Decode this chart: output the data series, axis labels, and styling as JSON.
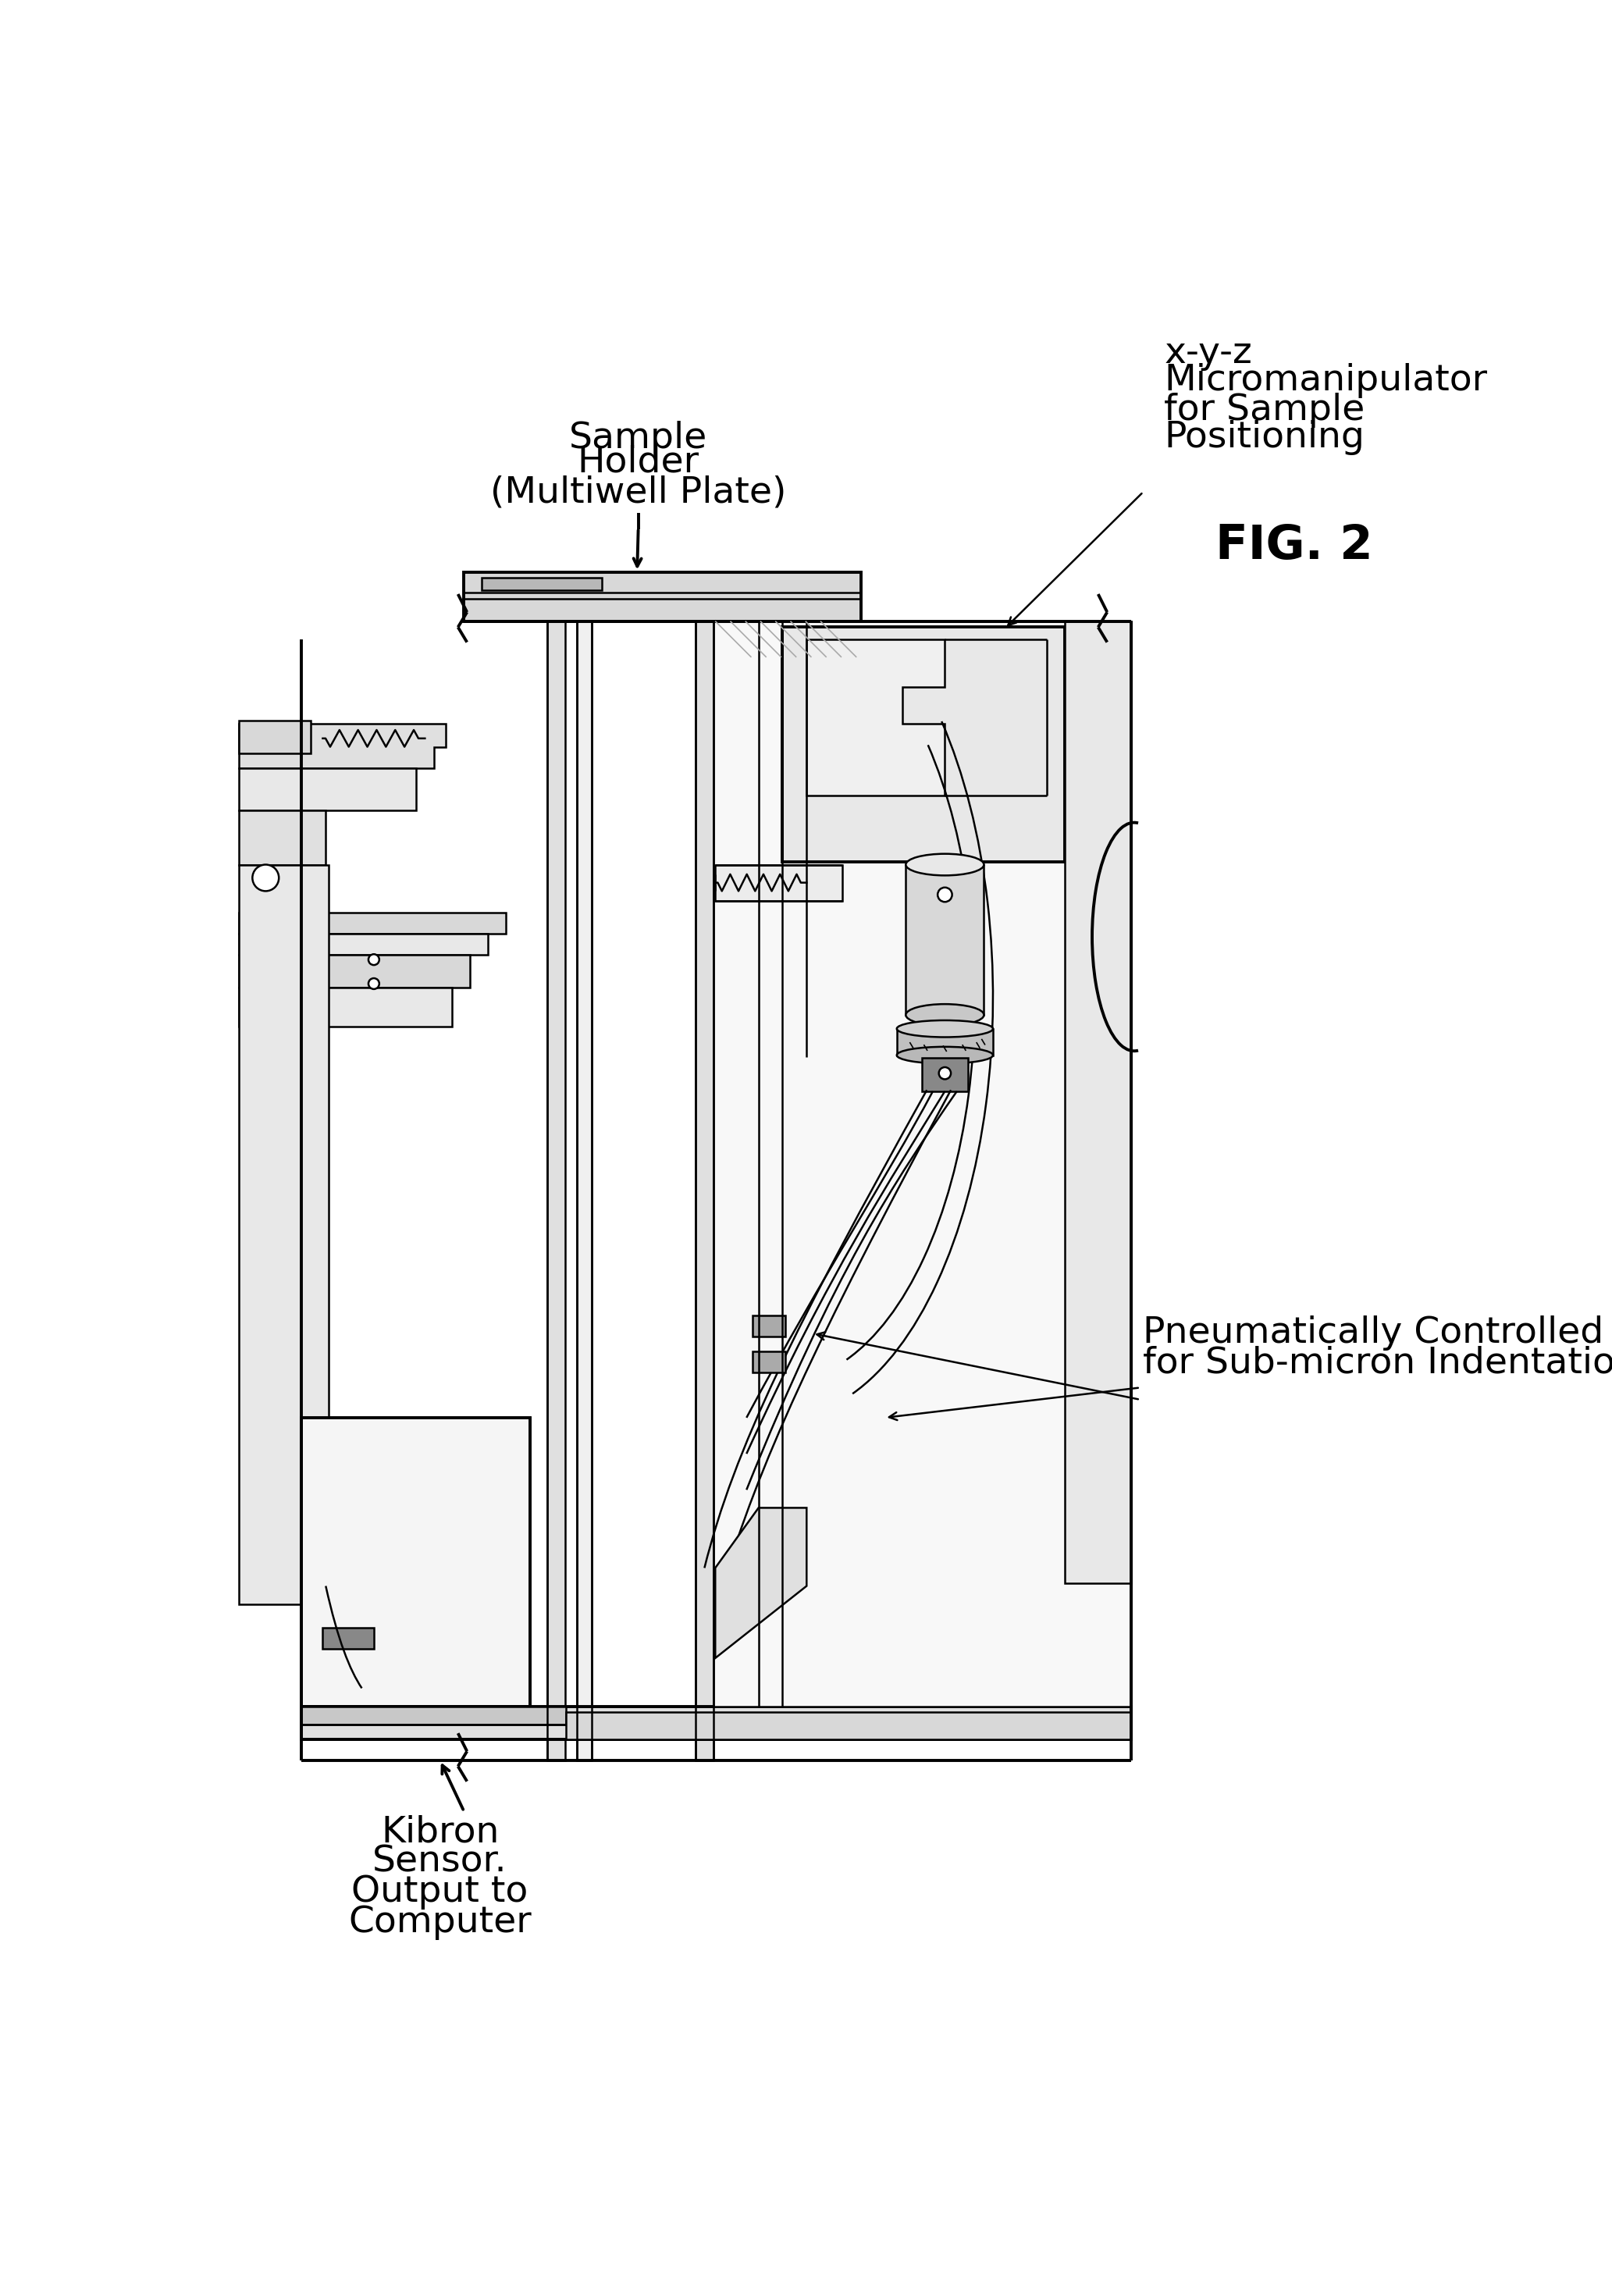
{
  "background_color": "#ffffff",
  "line_color": "#000000",
  "label_sample_holder_line1": "Sample",
  "label_sample_holder_line2": "Holder",
  "label_sample_holder_line3": "(Multiwell Plate)",
  "label_xyz_line1": "x-y-z",
  "label_xyz_line2": "Micromanipulator",
  "label_xyz_line3": "for Sample",
  "label_xyz_line4": "Positioning",
  "label_pneumatic_line1": "Pneumatically Controlled Vertical Stage",
  "label_pneumatic_line2": "for Sub-micron Indentation",
  "label_kibron_line1": "Kibron",
  "label_kibron_line2": "Sensor.",
  "label_kibron_line3": "Output to",
  "label_kibron_line4": "Computer",
  "fig_label": "FIG. 2",
  "font_size": 34,
  "lw": 1.8,
  "lw2": 2.8,
  "lw3": 1.2
}
